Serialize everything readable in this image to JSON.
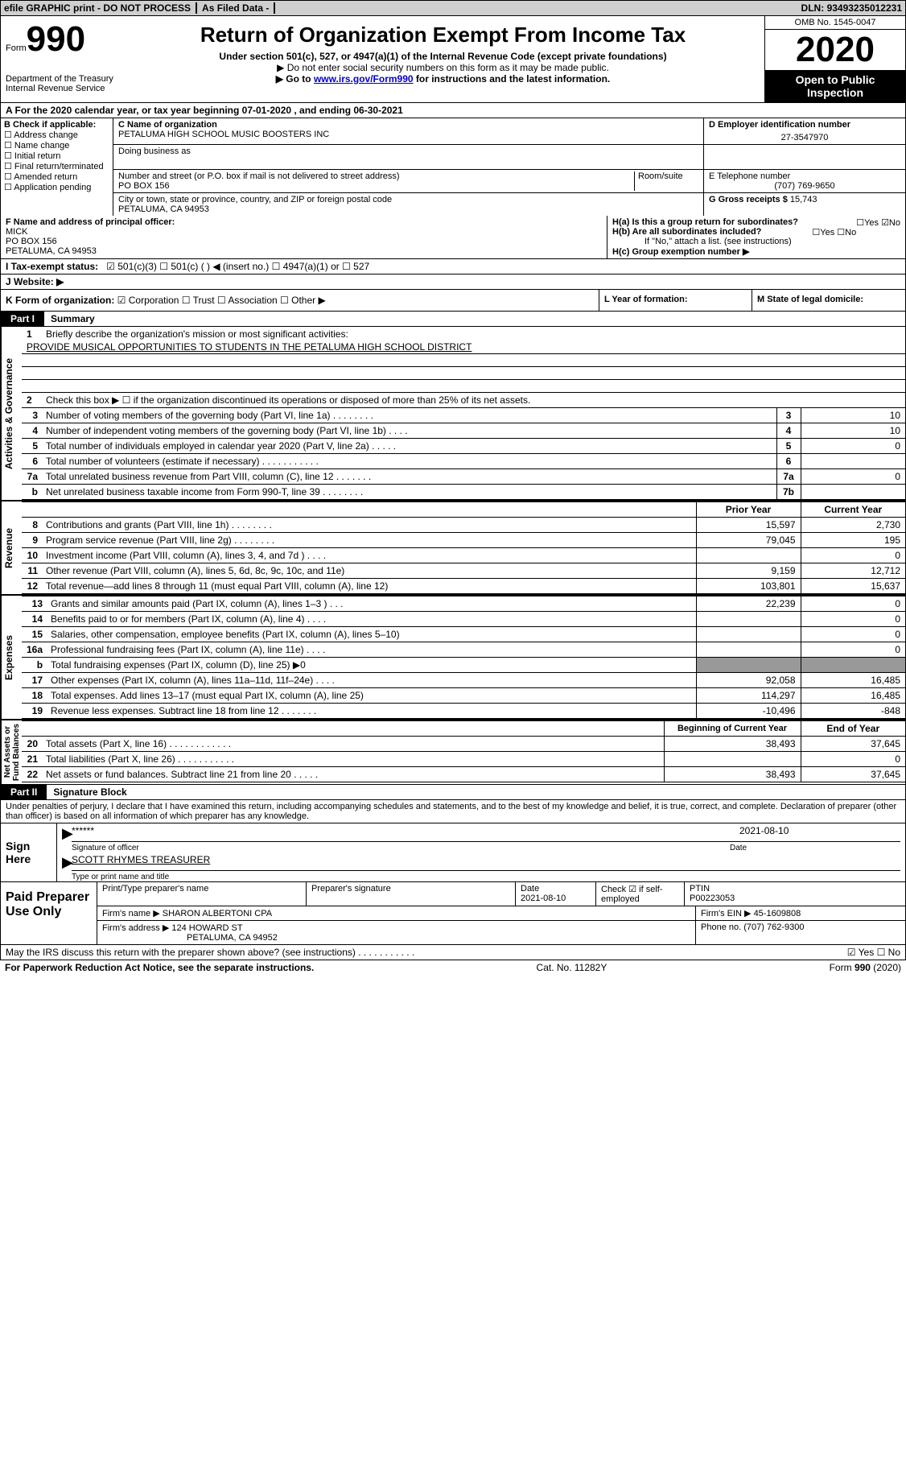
{
  "top": {
    "efile": "efile GRAPHIC print - DO NOT PROCESS",
    "asfiled": "As Filed Data -",
    "dln_label": "DLN:",
    "dln": "93493235012231"
  },
  "header": {
    "form_word": "Form",
    "form_num": "990",
    "dept": "Department of the Treasury\nInternal Revenue Service",
    "title": "Return of Organization Exempt From Income Tax",
    "subtitle": "Under section 501(c), 527, or 4947(a)(1) of the Internal Revenue Code (except private foundations)",
    "notice1": "▶ Do not enter social security numbers on this form as it may be made public.",
    "notice2_pre": "▶ Go to ",
    "notice2_link": "www.irs.gov/Form990",
    "notice2_post": " for instructions and the latest information.",
    "omb": "OMB No. 1545-0047",
    "year": "2020",
    "open": "Open to Public\nInspection"
  },
  "lineA": "A   For the 2020 calendar year, or tax year beginning 07-01-2020    , and ending 06-30-2021",
  "B": {
    "label": "B Check if applicable:",
    "items": [
      "☐ Address change",
      "☐ Name change",
      "☐ Initial return",
      "☐ Final return/terminated",
      "☐ Amended return",
      "☐ Application pending"
    ]
  },
  "C": {
    "name_lbl": "C Name of organization",
    "name": "PETALUMA HIGH SCHOOL MUSIC BOOSTERS INC",
    "dba_lbl": "Doing business as",
    "street_lbl": "Number and street (or P.O. box if mail is not delivered to street address)",
    "room_lbl": "Room/suite",
    "street": "PO BOX 156",
    "city_lbl": "City or town, state or province, country, and ZIP or foreign postal code",
    "city": "PETALUMA, CA  94953"
  },
  "D": {
    "lbl": "D Employer identification number",
    "val": "27-3547970"
  },
  "E": {
    "lbl": "E Telephone number",
    "val": "(707) 769-9650"
  },
  "G": {
    "lbl": "G Gross receipts $",
    "val": "15,743"
  },
  "F": {
    "lbl": "F  Name and address of principal officer:",
    "name": "MICK",
    "addr1": "PO BOX 156",
    "addr2": "PETALUMA, CA  94953"
  },
  "H": {
    "a": "H(a)  Is this a group return for subordinates?",
    "a_ans": "☐Yes ☑No",
    "b": "H(b)  Are all subordinates included?",
    "b_ans": "☐Yes ☐No",
    "b_note": "If \"No,\" attach a list. (see instructions)",
    "c": "H(c)  Group exemption number ▶"
  },
  "I": {
    "lbl": "I   Tax-exempt status:",
    "opts": "☑ 501(c)(3)    ☐ 501(c) (  ) ◀ (insert no.)    ☐ 4947(a)(1) or    ☐ 527"
  },
  "J": {
    "lbl": "J   Website: ▶"
  },
  "K": {
    "lbl": "K Form of organization:",
    "opts": "☑ Corporation  ☐ Trust  ☐ Association  ☐ Other ▶"
  },
  "L": "L Year of formation:",
  "M": "M State of legal domicile:",
  "partI": {
    "tab": "Part I",
    "title": "Summary"
  },
  "gov": {
    "side": "Activities & Governance",
    "q1": "Briefly describe the organization's mission or most significant activities:",
    "mission": "PROVIDE MUSICAL OPPORTUNITIES TO STUDENTS IN THE PETALUMA HIGH SCHOOL DISTRICT",
    "q2": "Check this box ▶ ☐ if the organization discontinued its operations or disposed of more than 25% of its net assets.",
    "rows": [
      {
        "n": "3",
        "t": "Number of voting members of the governing body (Part VI, line 1a)  .    .    .    .    .    .    .    .",
        "box": "3",
        "v": "10"
      },
      {
        "n": "4",
        "t": "Number of independent voting members of the governing body (Part VI, line 1b)    .    .    .    .",
        "box": "4",
        "v": "10"
      },
      {
        "n": "5",
        "t": "Total number of individuals employed in calendar year 2020 (Part V, line 2a)   .    .    .    .    .",
        "box": "5",
        "v": "0"
      },
      {
        "n": "6",
        "t": "Total number of volunteers (estimate if necessary)   .    .    .    .    .    .    .    .    .    .    .",
        "box": "6",
        "v": ""
      },
      {
        "n": "7a",
        "t": "Total unrelated business revenue from Part VIII, column (C), line 12   .    .    .    .    .    .    .",
        "box": "7a",
        "v": "0"
      },
      {
        "n": "b",
        "t": "Net unrelated business taxable income from Form 990-T, line 39   .    .    .    .    .    .    .    .",
        "box": "7b",
        "v": ""
      }
    ]
  },
  "revenue": {
    "side": "Revenue",
    "hdr_prior": "Prior Year",
    "hdr_current": "Current Year",
    "rows": [
      {
        "n": "8",
        "t": "Contributions and grants (Part VIII, line 1h)   .    .    .    .    .    .    .    .",
        "p": "15,597",
        "c": "2,730"
      },
      {
        "n": "9",
        "t": "Program service revenue (Part VIII, line 2g)   .    .    .    .    .    .    .    .",
        "p": "79,045",
        "c": "195"
      },
      {
        "n": "10",
        "t": "Investment income (Part VIII, column (A), lines 3, 4, and 7d )   .    .    .    .",
        "p": "",
        "c": "0"
      },
      {
        "n": "11",
        "t": "Other revenue (Part VIII, column (A), lines 5, 6d, 8c, 9c, 10c, and 11e)",
        "p": "9,159",
        "c": "12,712"
      },
      {
        "n": "12",
        "t": "Total revenue—add lines 8 through 11 (must equal Part VIII, column (A), line 12)",
        "p": "103,801",
        "c": "15,637"
      }
    ]
  },
  "expenses": {
    "side": "Expenses",
    "rows": [
      {
        "n": "13",
        "t": "Grants and similar amounts paid (Part IX, column (A), lines 1–3 )   .    .    .",
        "p": "22,239",
        "c": "0"
      },
      {
        "n": "14",
        "t": "Benefits paid to or for members (Part IX, column (A), line 4)   .    .    .    .",
        "p": "",
        "c": "0"
      },
      {
        "n": "15",
        "t": "Salaries, other compensation, employee benefits (Part IX, column (A), lines 5–10)",
        "p": "",
        "c": "0"
      },
      {
        "n": "16a",
        "t": "Professional fundraising fees (Part IX, column (A), line 11e)   .    .    .    .",
        "p": "",
        "c": "0"
      },
      {
        "n": "b",
        "t": "Total fundraising expenses (Part IX, column (D), line 25) ▶0",
        "p": "gray",
        "c": "gray"
      },
      {
        "n": "17",
        "t": "Other expenses (Part IX, column (A), lines 11a–11d, 11f–24e)   .    .    .    .",
        "p": "92,058",
        "c": "16,485"
      },
      {
        "n": "18",
        "t": "Total expenses. Add lines 13–17 (must equal Part IX, column (A), line 25)",
        "p": "114,297",
        "c": "16,485"
      },
      {
        "n": "19",
        "t": "Revenue less expenses. Subtract line 18 from line 12 .    .    .    .    .    .    .",
        "p": "-10,496",
        "c": "-848"
      }
    ]
  },
  "netassets": {
    "side": "Net Assets or\nFund Balances",
    "hdr_prior": "Beginning of Current Year",
    "hdr_current": "End of Year",
    "rows": [
      {
        "n": "20",
        "t": "Total assets (Part X, line 16)   .    .    .    .    .    .    .    .    .    .    .    .",
        "p": "38,493",
        "c": "37,645"
      },
      {
        "n": "21",
        "t": "Total liabilities (Part X, line 26)   .    .    .    .    .    .    .    .    .    .    .",
        "p": "",
        "c": "0"
      },
      {
        "n": "22",
        "t": "Net assets or fund balances. Subtract line 21 from line 20 .    .    .    .    .",
        "p": "38,493",
        "c": "37,645"
      }
    ]
  },
  "partII": {
    "tab": "Part II",
    "title": "Signature Block"
  },
  "sig_decl": "Under penalties of perjury, I declare that I have examined this return, including accompanying schedules and statements, and to the best of my knowledge and belief, it is true, correct, and complete. Declaration of preparer (other than officer) is based on all information of which preparer has any knowledge.",
  "sign": {
    "here": "Sign Here",
    "stars": "******",
    "sig_lbl": "Signature of officer",
    "date": "2021-08-10",
    "date_lbl": "Date",
    "name": "SCOTT RHYMES TREASURER",
    "name_lbl": "Type or print name and title"
  },
  "prep": {
    "label": "Paid Preparer Use Only",
    "h1": "Print/Type preparer's name",
    "h2": "Preparer's signature",
    "h3": "Date",
    "h3v": "2021-08-10",
    "h4": "Check ☑ if self-employed",
    "h5": "PTIN",
    "h5v": "P00223053",
    "firm_lbl": "Firm's name    ▶",
    "firm": "SHARON ALBERTONI CPA",
    "ein_lbl": "Firm's EIN ▶",
    "ein": "45-1609808",
    "addr_lbl": "Firm's address ▶",
    "addr1": "124 HOWARD ST",
    "addr2": "PETALUMA, CA  94952",
    "phone_lbl": "Phone no.",
    "phone": "(707) 762-9300"
  },
  "footer": {
    "discuss": "May the IRS discuss this return with the preparer shown above? (see instructions)   .    .    .    .    .    .    .    .    .    .    .",
    "ans": "☑ Yes  ☐ No",
    "paperwork": "For Paperwork Reduction Act Notice, see the separate instructions.",
    "catno": "Cat. No. 11282Y",
    "form": "Form 990 (2020)"
  }
}
